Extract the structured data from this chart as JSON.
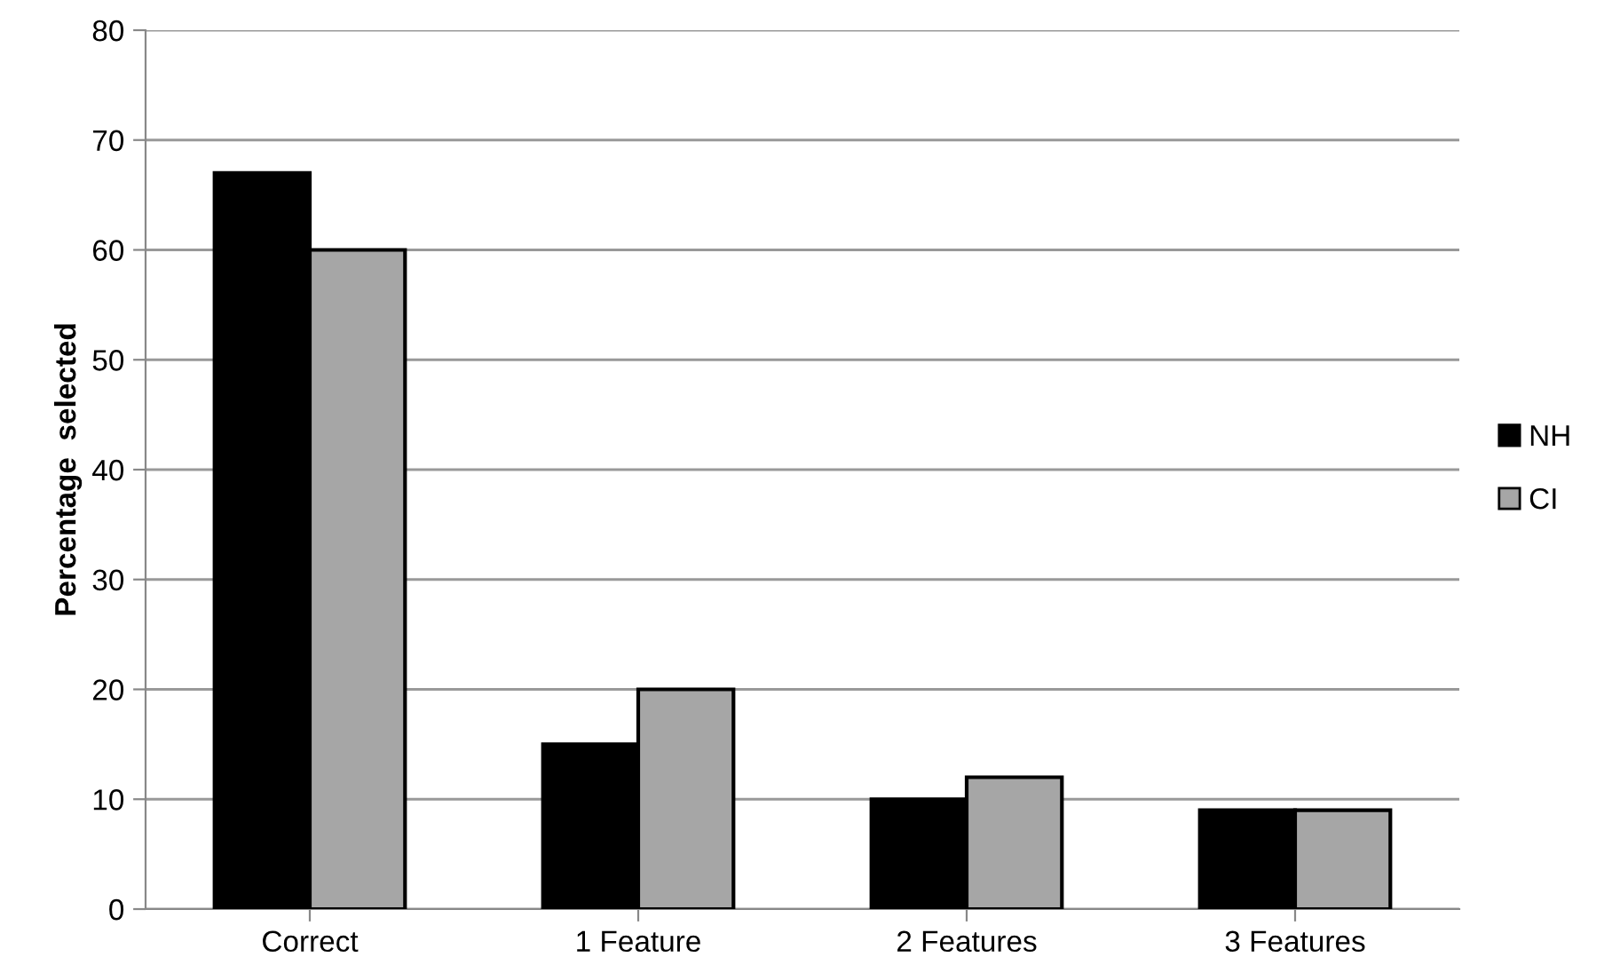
{
  "chart_data": {
    "type": "bar",
    "ylabel": "Percentage  selected",
    "categories": [
      "Correct",
      "1 Feature",
      "2 Features",
      "3 Features"
    ],
    "series": [
      {
        "name": "NH",
        "color": "#000000",
        "values": [
          67,
          15,
          10,
          9
        ]
      },
      {
        "name": "CI",
        "color": "#a6a6a6",
        "values": [
          60,
          20,
          12,
          9
        ]
      }
    ],
    "ylim": [
      0,
      80
    ],
    "yticks": [
      0,
      10,
      20,
      30,
      40,
      50,
      60,
      70,
      80
    ],
    "grid": "y",
    "legend": "right"
  }
}
